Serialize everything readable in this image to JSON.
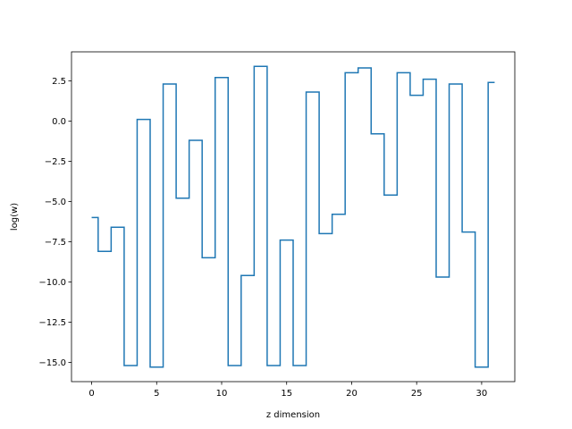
{
  "chart_data": {
    "type": "line",
    "step": "mid",
    "xlabel": "z dimension",
    "ylabel": "log(w)",
    "xlim": [
      -1.55,
      32.55
    ],
    "ylim": [
      -16.2,
      4.3
    ],
    "xticks": [
      0,
      5,
      10,
      15,
      20,
      25,
      30
    ],
    "xtick_labels": [
      "0",
      "5",
      "10",
      "15",
      "20",
      "25",
      "30"
    ],
    "yticks": [
      2.5,
      0.0,
      -2.5,
      -5.0,
      -7.5,
      -10.0,
      -12.5,
      -15.0
    ],
    "ytick_labels": [
      "2.5",
      "0.0",
      "−2.5",
      "−5.0",
      "−7.5",
      "−10.0",
      "−12.5",
      "−15.0"
    ],
    "grid": false,
    "line_color": "#1f77b4",
    "series": [
      {
        "x": [
          0,
          1,
          2,
          3,
          4,
          5,
          6,
          7,
          8,
          9,
          10,
          11,
          12,
          13,
          14,
          15,
          16,
          17,
          18,
          19,
          20,
          21,
          22,
          23,
          24,
          25,
          26,
          27,
          28,
          29,
          30,
          31
        ],
        "values": [
          -6.0,
          -8.1,
          -6.6,
          -15.2,
          0.1,
          -15.3,
          2.3,
          -4.8,
          -1.2,
          -8.5,
          2.7,
          -15.2,
          -9.6,
          3.4,
          -15.2,
          -7.4,
          -15.2,
          1.8,
          -7.0,
          -5.8,
          3.0,
          3.3,
          -0.8,
          -4.6,
          3.0,
          1.6,
          2.6,
          -9.7,
          2.3,
          -6.9,
          -15.3,
          2.4
        ]
      }
    ]
  }
}
